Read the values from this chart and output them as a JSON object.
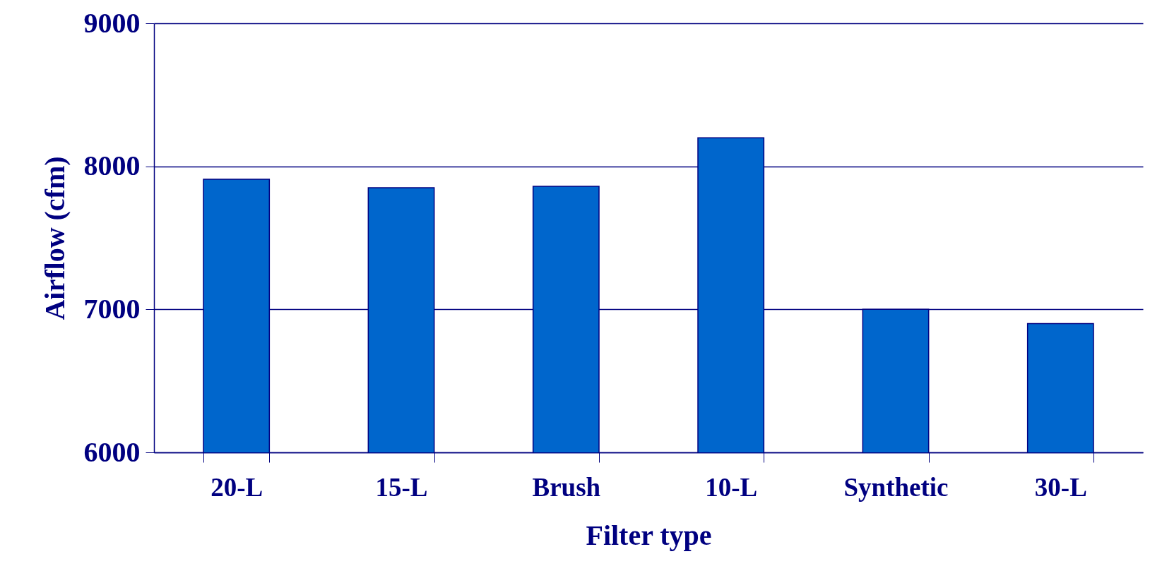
{
  "chart_data": {
    "type": "bar",
    "xlabel": "Filter type",
    "ylabel": "Airflow (cfm)",
    "categories": [
      "20-L",
      "15-L",
      "Brush",
      "10-L",
      "Synthetic",
      "30-L"
    ],
    "values": [
      7910,
      7850,
      7860,
      8200,
      7000,
      6900
    ],
    "color": "#0066cc",
    "ylim": [
      6000,
      9000
    ],
    "yticks": [
      6000,
      7000,
      8000,
      9000
    ],
    "grid": "y"
  }
}
